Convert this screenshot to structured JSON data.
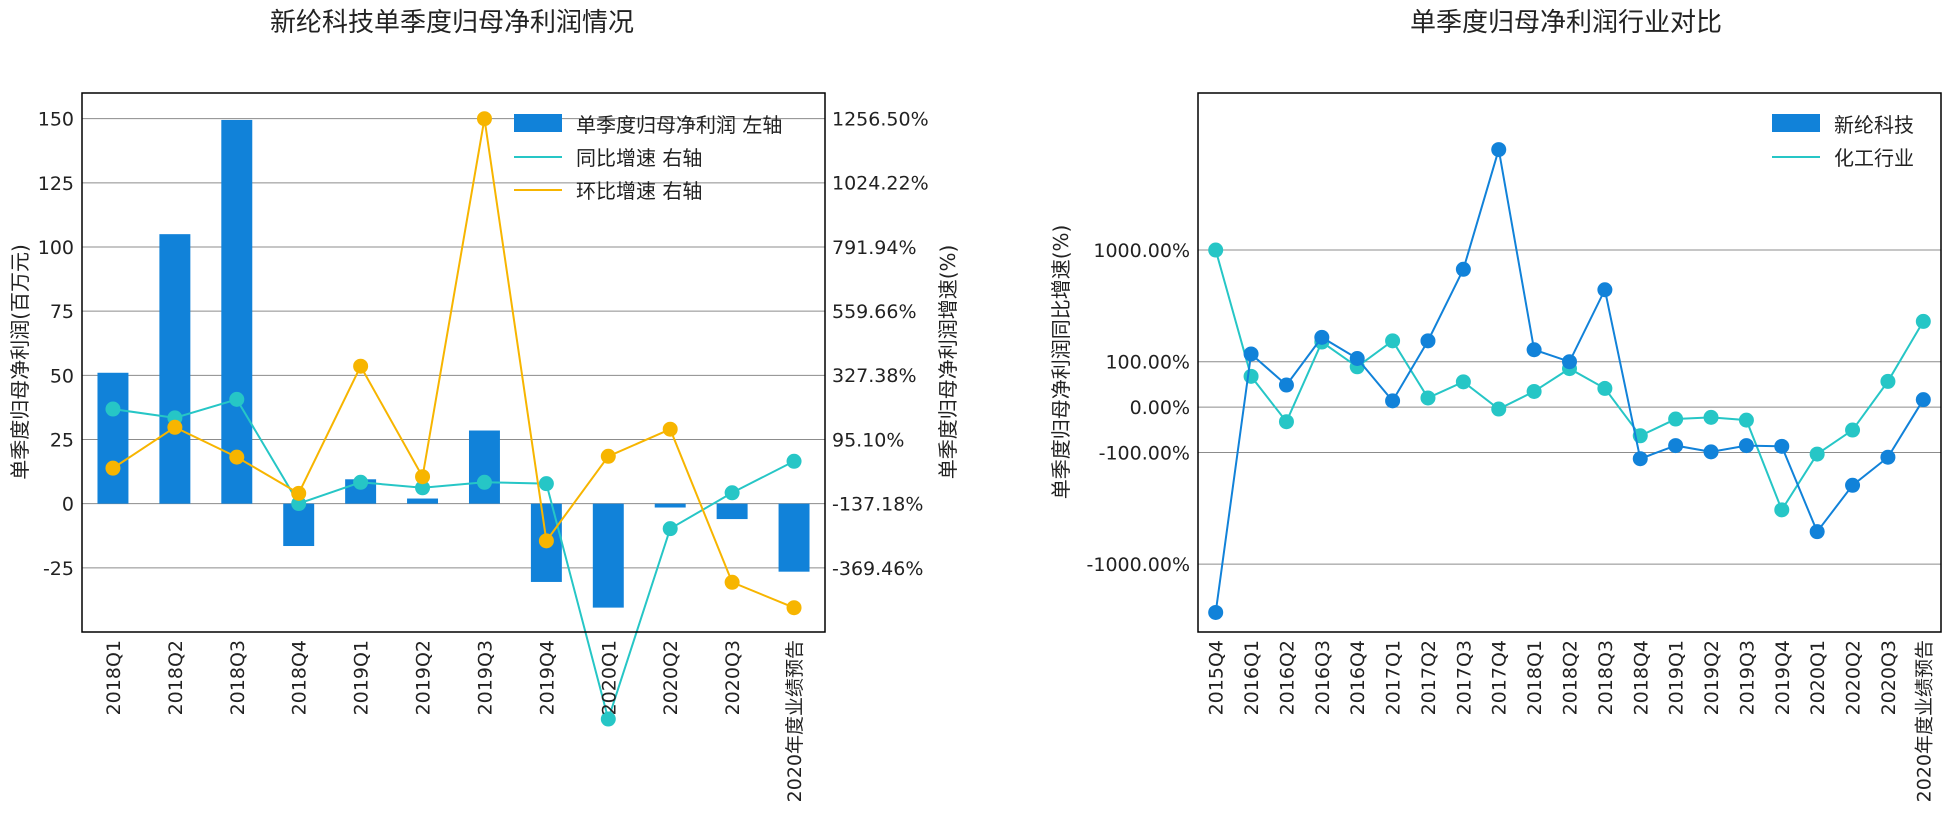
{
  "colors": {
    "bar": "#1182d9",
    "yoy": "#26c6c6",
    "qoq": "#f7b500",
    "company_line": "#1182d9",
    "industry_line": "#26c6c6"
  },
  "chart_data": [
    {
      "type": "bar",
      "title": "新纶科技单季度归母净利润情况",
      "ylabel": "单季度归母净利润(百万元)",
      "y2label": "单季度归母净利润增速(%)",
      "categories": [
        "2018Q1",
        "2018Q2",
        "2018Q3",
        "2018Q4",
        "2019Q1",
        "2019Q2",
        "2019Q3",
        "2019Q4",
        "2020Q1",
        "2020Q2",
        "2020Q3",
        "2020年度业绩预告"
      ],
      "yticks": [
        "-25",
        "0",
        "25",
        "50",
        "75",
        "100",
        "125",
        "150"
      ],
      "y2ticks": [
        "-369.46%",
        "-137.18%",
        "95.10%",
        "327.38%",
        "559.66%",
        "791.94%",
        "1024.22%",
        "1256.50%"
      ],
      "ylim": [
        -50,
        160
      ],
      "y2lim": [
        -602,
        1349
      ],
      "legend_position": "top-right",
      "series": [
        {
          "name": "单季度归母净利润 左轴",
          "kind": "bar",
          "axis": "left",
          "values": [
            51,
            105,
            149.5,
            -16.5,
            9.5,
            2,
            28.5,
            -30.5,
            -40.5,
            -1.5,
            -6,
            -26.5
          ]
        },
        {
          "name": "同比增速 右轴",
          "kind": "line",
          "axis": "right",
          "values": [
            205,
            173,
            240,
            -137,
            -60,
            -80,
            -60,
            -65,
            -917,
            -228,
            -98,
            16
          ]
        },
        {
          "name": "环比增速 右轴",
          "kind": "line",
          "axis": "right",
          "values": [
            -9,
            139,
            31,
            -100,
            360,
            -40,
            1256,
            -272,
            34,
            132,
            -422,
            -514
          ]
        }
      ]
    },
    {
      "type": "line",
      "title": "单季度归母净利润行业对比",
      "ylabel": "单季度归母净利润同比增速(%)",
      "categories": [
        "2015Q4",
        "2016Q1",
        "2016Q2",
        "2016Q3",
        "2016Q4",
        "2017Q1",
        "2017Q2",
        "2017Q3",
        "2017Q4",
        "2018Q1",
        "2018Q2",
        "2018Q3",
        "2018Q4",
        "2019Q1",
        "2019Q2",
        "2019Q3",
        "2019Q4",
        "2020Q1",
        "2020Q2",
        "2020Q3",
        "2020年度业绩预告"
      ],
      "yticks": [
        "-1000.00%",
        "-100.00%",
        "0.00%",
        "100.00%",
        "1000.00%"
      ],
      "yscale": "symlog",
      "legend_position": "top-right",
      "series": [
        {
          "name": "新纶科技",
          "values": [
            -2200,
            125,
            40,
            190,
            110,
            10,
            175,
            720,
            5000,
            140,
            100,
            500,
            -120,
            -80,
            -98,
            -80,
            -82,
            -570,
            -230,
            -115,
            12
          ]
        },
        {
          "name": "化工行业",
          "values": [
            1000,
            60,
            -25,
            170,
            85,
            175,
            15,
            47,
            -3,
            27,
            80,
            33,
            -55,
            -20,
            -17,
            -22,
            -380,
            -105,
            -42,
            48,
            270
          ]
        }
      ]
    }
  ]
}
